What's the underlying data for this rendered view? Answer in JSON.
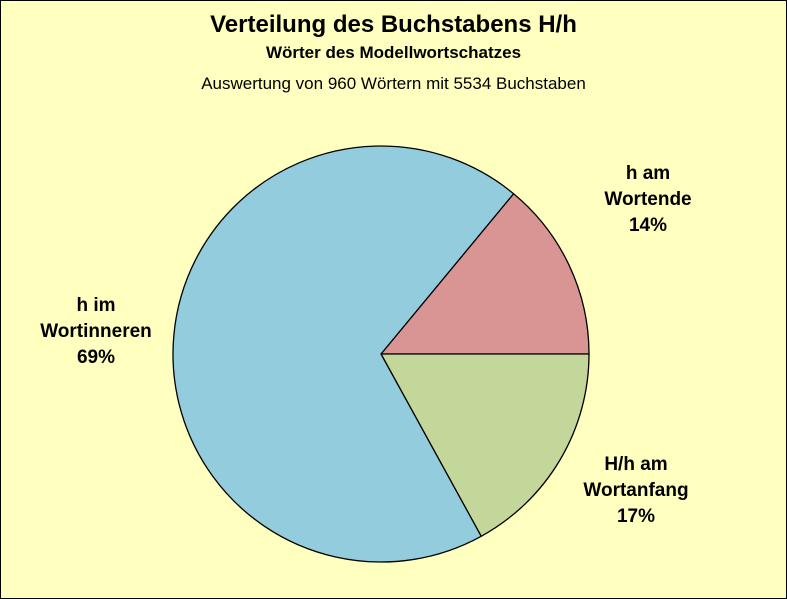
{
  "chart_data": {
    "type": "pie",
    "title": "Verteilung des Buchstabens H/h",
    "subtitle": "Wörter des Modellwortschatzes",
    "info": "Auswertung von 960 Wörtern mit 5534 Buchstaben",
    "slices": [
      {
        "line1": "h am",
        "line2": "Wortende",
        "percent_label": "14%",
        "value": 14,
        "color": "#d99594"
      },
      {
        "line1": "H/h am",
        "line2": "Wortanfang",
        "percent_label": "17%",
        "value": 17,
        "color": "#c4d79b"
      },
      {
        "line1": "h im",
        "line2": "Wortinneren",
        "percent_label": "69%",
        "value": 69,
        "color": "#93cddd"
      }
    ],
    "background_color": "#ffffc0"
  }
}
